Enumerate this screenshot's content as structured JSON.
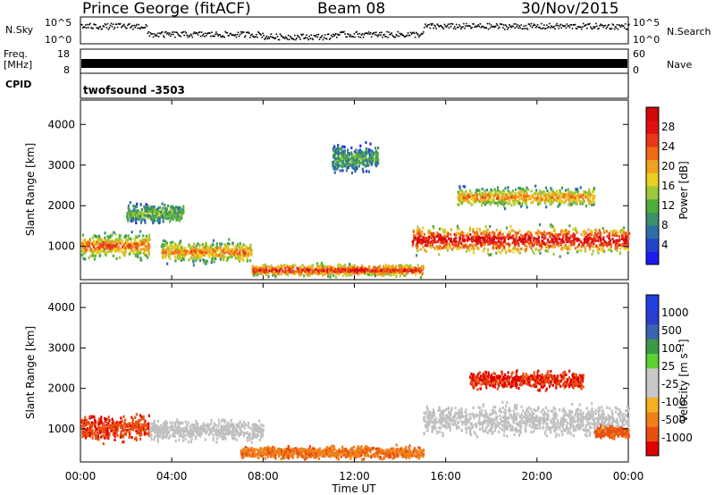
{
  "header": {
    "radar": "Prince George (fitACF)",
    "beam": "Beam 08",
    "date": "30/Nov/2015"
  },
  "summary": {
    "nsky_label": "N.Sky",
    "nsky_ticks": [
      "10^5",
      "10^0"
    ],
    "nsearch_label": "N.Search",
    "freq_label_1": "Freq.",
    "freq_label_2": "[MHz]",
    "freq_ticks": [
      "18",
      "8"
    ],
    "nave_label": "Nave",
    "nave_ticks": [
      "60",
      "0"
    ],
    "cpid_label": "CPID",
    "cpid_value": "twofsound -3503"
  },
  "colors": {
    "power_scale": [
      "#1c1cf0",
      "#2244cc",
      "#2f6fa8",
      "#3e8f6a",
      "#4fae3c",
      "#9ec83a",
      "#e8cf22",
      "#f2a020",
      "#f06a14",
      "#e83818",
      "#e01010",
      "#d00808"
    ],
    "velocity_scale": [
      "#e00000",
      "#e85010",
      "#f08018",
      "#f5b020",
      "#c8c8c8",
      "#c8c8c8",
      "#5cd030",
      "#3a9a48",
      "#3a64b0",
      "#2a3ed0",
      "#2040e0"
    ],
    "ground_scatter": "#c0c0c0"
  },
  "chart_data": [
    {
      "type": "heatmap",
      "panel": "power",
      "ylabel": "Slant Range [km]",
      "x_ticks": [
        "00:00",
        "04:00",
        "08:00",
        "12:00",
        "16:00",
        "20:00",
        "00:00"
      ],
      "xlim_hours": [
        0,
        24
      ],
      "y_ticks": [
        1000,
        2000,
        3000,
        4000
      ],
      "ylim_km": [
        180,
        4600
      ],
      "colorbar": {
        "label": "Power [dB]",
        "ticks": [
          4,
          8,
          12,
          16,
          20,
          24,
          28
        ],
        "range": [
          0,
          32
        ]
      },
      "features": [
        {
          "t": [
            0.0,
            3.0
          ],
          "range_km": [
            600,
            1400
          ],
          "peak_db": 24
        },
        {
          "t": [
            2.0,
            4.5
          ],
          "range_km": [
            1500,
            2100
          ],
          "peak_db": 14
        },
        {
          "t": [
            3.5,
            7.5
          ],
          "range_km": [
            500,
            1200
          ],
          "peak_db": 22
        },
        {
          "t": [
            7.5,
            15.0
          ],
          "range_km": [
            200,
            600
          ],
          "peak_db": 28
        },
        {
          "t": [
            11.0,
            13.0
          ],
          "range_km": [
            2700,
            3600
          ],
          "peak_db": 12
        },
        {
          "t": [
            14.5,
            24.0
          ],
          "range_km": [
            700,
            1600
          ],
          "peak_db": 30
        },
        {
          "t": [
            16.5,
            22.5
          ],
          "range_km": [
            1900,
            2500
          ],
          "peak_db": 22
        }
      ]
    },
    {
      "type": "heatmap",
      "panel": "velocity",
      "ylabel": "Slant Range [km]",
      "xlabel": "Time UT",
      "x_ticks": [
        "00:00",
        "04:00",
        "08:00",
        "12:00",
        "16:00",
        "20:00",
        "00:00"
      ],
      "xlim_hours": [
        0,
        24
      ],
      "y_ticks": [
        1000,
        2000,
        3000,
        4000
      ],
      "ylim_km": [
        180,
        4600
      ],
      "colorbar": {
        "label": "Velocity [m s⁻¹]",
        "ticks": [
          "1000",
          "500",
          "100",
          "25",
          "-25",
          "-100",
          "-500",
          "-1000"
        ]
      },
      "features": [
        {
          "t": [
            0.0,
            3.0
          ],
          "range_km": [
            600,
            1400
          ],
          "velocity_ms": -400
        },
        {
          "t": [
            3.0,
            8.0
          ],
          "range_km": [
            600,
            1300
          ],
          "class": "ground_scatter"
        },
        {
          "t": [
            7.0,
            15.0
          ],
          "range_km": [
            200,
            600
          ],
          "velocity_ms": -80
        },
        {
          "t": [
            15.0,
            24.0
          ],
          "range_km": [
            700,
            1700
          ],
          "class": "ground_scatter"
        },
        {
          "t": [
            17.0,
            22.0
          ],
          "range_km": [
            1900,
            2500
          ],
          "velocity_ms": -500
        },
        {
          "t": [
            22.5,
            24.0
          ],
          "range_km": [
            700,
            1100
          ],
          "velocity_ms": -150
        }
      ]
    }
  ]
}
